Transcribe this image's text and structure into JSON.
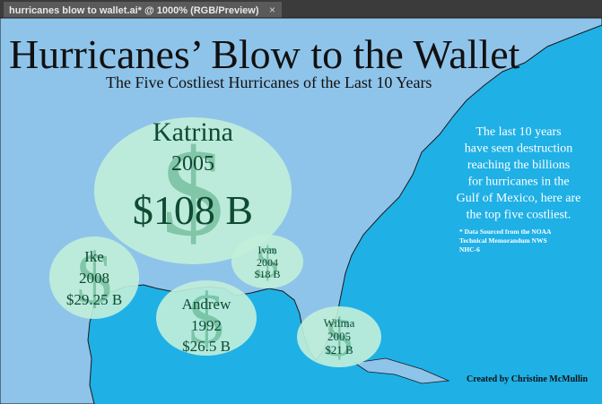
{
  "tab": {
    "title": "hurricanes blow to wallet.ai* @ 1000% (RGB/Preview)",
    "close": "×"
  },
  "infographic": {
    "title": "Hurricanes’ Blow to the Wallet",
    "subtitle": "The Five Costliest Hurricanes of the Last 10 Years",
    "hurricanes": [
      {
        "name": "Katrina",
        "year": "2005",
        "amount": "$108 B"
      },
      {
        "name": "Ike",
        "year": "2008",
        "amount": "$29.25 B"
      },
      {
        "name": "Ivan",
        "year": "2004",
        "amount": "$18 B"
      },
      {
        "name": "Andrew",
        "year": "1992",
        "amount": "$26.5 B"
      },
      {
        "name": "Wilma",
        "year": "2005",
        "amount": "$21 B"
      }
    ],
    "side_text": [
      "The last 10 years",
      "have seen destruction",
      "reaching the billions",
      "for hurricanes in the",
      "Gulf of Mexico, here are",
      "the top five costliest."
    ],
    "footnote": [
      "* Data Sourced from the NOAA",
      "Technical Memorandum NWS",
      "NHC-6"
    ],
    "credit": "Created by Christine McMullin"
  }
}
